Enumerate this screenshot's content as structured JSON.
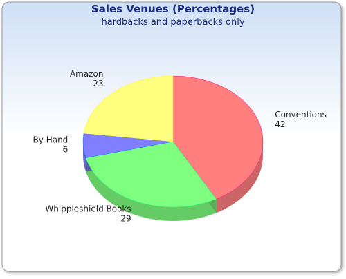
{
  "chart_data": {
    "type": "pie3d",
    "title": "Sales Venues (Percentages)",
    "subtitle": "hardbacks and paperbacks only",
    "categories": [
      "Conventions",
      "Whippleshield Books",
      "By Hand",
      "Amazon"
    ],
    "values": [
      42,
      29,
      6,
      23
    ],
    "colors": [
      "#ff7f7f",
      "#7fff7f",
      "#7f7fff",
      "#ffff7f"
    ]
  }
}
